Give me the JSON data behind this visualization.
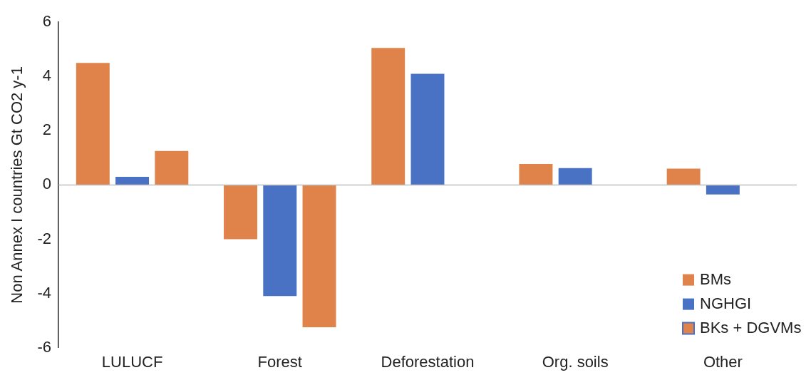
{
  "chart_data": {
    "type": "bar",
    "ylabel": "Non Annex I countries Gt CO2 y-1",
    "categories": [
      "LULUCF",
      "Forest",
      "Deforestation",
      "Org. soils",
      "Other"
    ],
    "series": [
      {
        "name": "BMs",
        "color": "#e0834a",
        "values": [
          4.5,
          -2.0,
          5.05,
          0.77,
          0.6
        ]
      },
      {
        "name": "NGHGI",
        "color": "#4a72c4",
        "values": [
          0.3,
          -4.1,
          4.1,
          0.62,
          -0.35
        ]
      },
      {
        "name": "BKs + DGVMs",
        "color": "#e0834a",
        "values": [
          1.25,
          -5.25,
          null,
          null,
          null
        ]
      }
    ],
    "ref_lines": [
      {
        "axis": "y",
        "value": 0,
        "color": "#bfbfbf"
      }
    ],
    "ylim": [
      -6,
      6
    ],
    "yticks": [
      -6,
      -4,
      -2,
      0,
      2,
      4,
      6
    ],
    "grid": false,
    "legend": "bottom right"
  }
}
